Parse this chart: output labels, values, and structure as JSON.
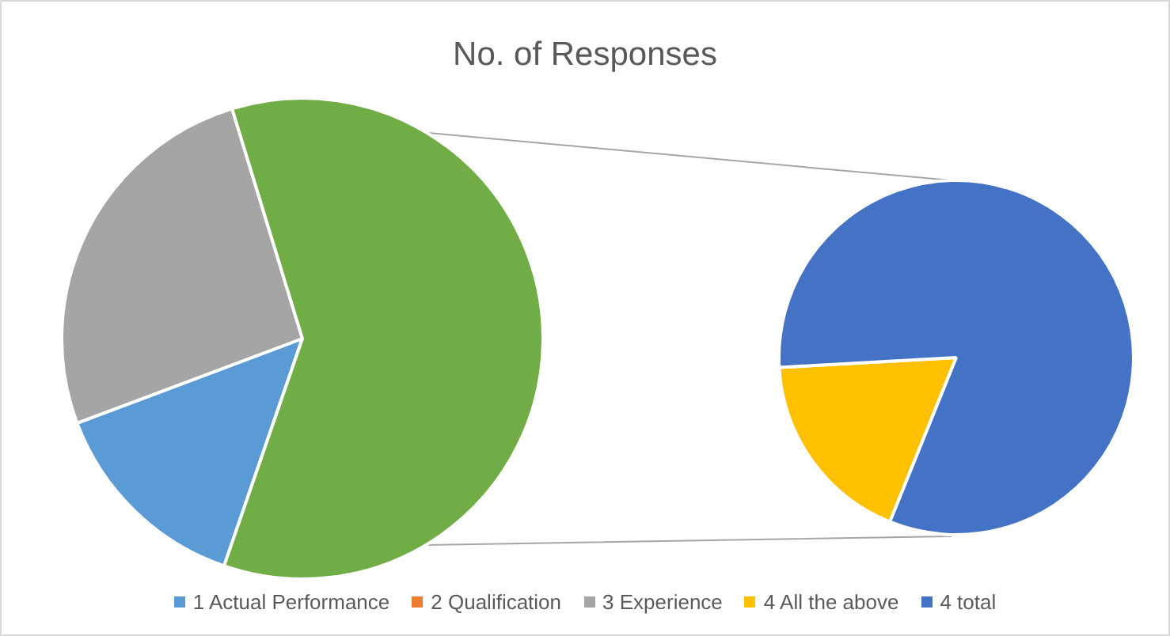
{
  "chart_data": [
    {
      "type": "pie",
      "title": "No. of Responses",
      "categories": [
        "1 Actual Performance",
        "2 Qualification",
        "3 Experience",
        null
      ],
      "values": [
        14,
        0,
        26,
        60
      ],
      "colors": [
        "#5b9bd5",
        "#ed7d31",
        "#a5a5a5",
        "#70ad47"
      ],
      "legend": "bottom"
    },
    {
      "type": "pie",
      "categories": [
        "4 All the above",
        "4 total"
      ],
      "values": [
        18,
        82
      ],
      "colors": [
        "#ffc000",
        "#4472c4"
      ],
      "legend": "bottom"
    }
  ]
}
